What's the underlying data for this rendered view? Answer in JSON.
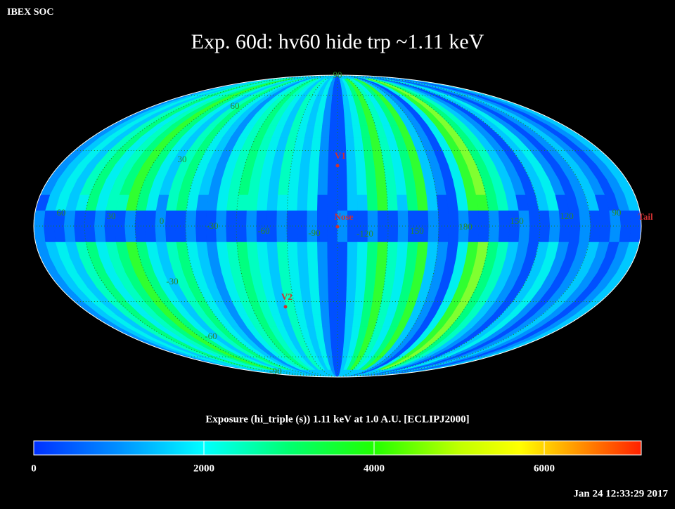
{
  "header": {
    "source": "IBEX SOC",
    "title": "Exp.   60d: hv60 hide trp ~1.11 keV"
  },
  "map": {
    "longitude_labels": [
      "60",
      "30",
      "0",
      "-30",
      "-60",
      "-90",
      "-120",
      "150",
      "180",
      "150",
      "120",
      "90"
    ],
    "latitude_labels": [
      "90",
      "60",
      "30",
      "-30",
      "-60",
      "-90"
    ],
    "markers": [
      {
        "label": "V1"
      },
      {
        "label": "Nose"
      },
      {
        "label": "Tail"
      },
      {
        "label": "V2"
      }
    ]
  },
  "colorbar": {
    "label": "Exposure (hi_triple (s))  1.11 keV at 1.0 A.U. [ECLIPJ2000]",
    "ticks": [
      "0",
      "2000",
      "4000",
      "6000"
    ]
  },
  "footer": {
    "timestamp": "Jan 24 12:33:29 2017"
  }
}
